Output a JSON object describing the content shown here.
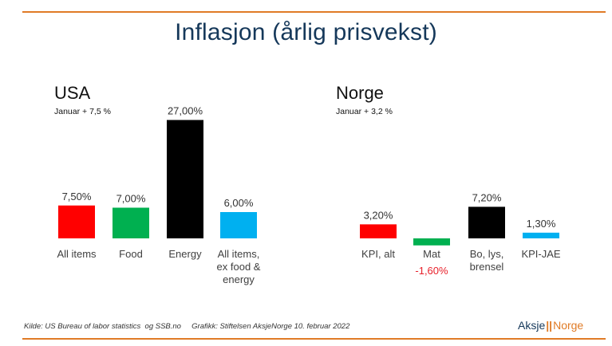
{
  "title": "Inflasjon (årlig prisvekst)",
  "colors": {
    "accent": "#e07b26",
    "title": "#15385a",
    "negative_label": "#e8202a"
  },
  "chart_data": [
    {
      "type": "bar",
      "title": "USA",
      "subtitle": "Januar + 7,5 %",
      "categories": [
        "All items",
        "Food",
        "Energy",
        "All items, ex food & energy"
      ],
      "category_lines": [
        [
          "All items"
        ],
        [
          "Food"
        ],
        [
          "Energy"
        ],
        [
          "All items,",
          "ex food &",
          "energy"
        ]
      ],
      "values": [
        7.5,
        7.0,
        27.0,
        6.0
      ],
      "value_labels": [
        "7,50%",
        "7,00%",
        "27,00%",
        "6,00%"
      ],
      "colors": [
        "#ff0000",
        "#00b050",
        "#000000",
        "#00b0f0"
      ],
      "grid": false,
      "legend": "none"
    },
    {
      "type": "bar",
      "title": "Norge",
      "subtitle": "Januar + 3,2 %",
      "categories": [
        "KPI, alt",
        "Mat",
        "Bo, lys, brensel",
        "KPI-JAE"
      ],
      "category_lines": [
        [
          "KPI, alt"
        ],
        [
          "Mat"
        ],
        [
          "Bo, lys,",
          "brensel"
        ],
        [
          "KPI-JAE"
        ]
      ],
      "values": [
        3.2,
        -1.6,
        7.2,
        1.3
      ],
      "value_labels": [
        "3,20%",
        "-1,60%",
        "7,20%",
        "1,30%"
      ],
      "colors": [
        "#ff0000",
        "#00b050",
        "#000000",
        "#00b0f0"
      ],
      "grid": false,
      "legend": "none"
    }
  ],
  "footer": {
    "source": "Kilde: US Bureau of labor statistics  og SSB.no     Grafikk: Stiftelsen AksjeNorge 10. februar 2022",
    "brand_part1": "Aksje",
    "brand_separator": "||",
    "brand_part2": "Norge"
  }
}
